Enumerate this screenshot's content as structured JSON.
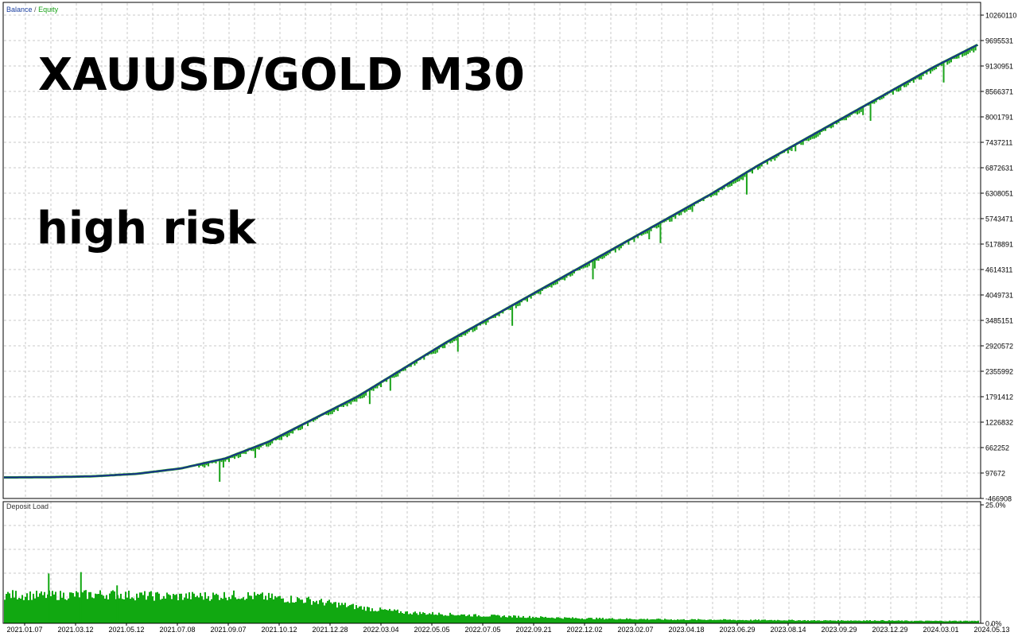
{
  "overlay": {
    "title": "XAUUSD/GOLD M30",
    "subtitle": "high risk"
  },
  "legend": {
    "balance": "Balance",
    "separator": "/",
    "equity": "Equity"
  },
  "colors": {
    "balance": "#1a2f8f",
    "equity": "#1aa31a",
    "deposit_load": "#11a811",
    "grid": "#c8c8c8",
    "frame": "#000000"
  },
  "chart_data": [
    {
      "type": "line",
      "series": [
        {
          "name": "Balance",
          "values": [
            0,
            5000,
            25000,
            80000,
            200000,
            420000,
            800000,
            1300000,
            1800000,
            2400000,
            3000000,
            3550000,
            4100000,
            4650000,
            5200000,
            5750000,
            6300000,
            6900000,
            7450000,
            8000000,
            8550000,
            9100000,
            9600000
          ]
        },
        {
          "name": "Equity",
          "values": [
            0,
            5000,
            25000,
            80000,
            200000,
            420000,
            800000,
            1300000,
            1800000,
            2400000,
            3000000,
            3550000,
            4100000,
            4650000,
            5200000,
            5750000,
            6300000,
            6900000,
            7450000,
            8000000,
            8550000,
            9100000,
            9600000
          ]
        }
      ],
      "ylim": [
        -466908,
        10260110
      ],
      "y_ticks": [
        "10260110",
        "9695531",
        "9130951",
        "8566371",
        "8001791",
        "7437211",
        "6872631",
        "6308051",
        "5743471",
        "5178891",
        "4614311",
        "4049731",
        "3485151",
        "2920572",
        "2355992",
        "1791412",
        "1226832",
        "662252",
        "97672",
        "-466908"
      ],
      "grid": true,
      "legend": "top-left"
    },
    {
      "type": "bar",
      "title": "Deposit Load",
      "y_ticks": [
        "25.0%",
        "0.0%"
      ],
      "ylim": [
        0,
        25
      ],
      "x_ticks": [
        "2021.01.07",
        "2021.03.12",
        "2021.05.12",
        "2021.07.08",
        "2021.09.07",
        "2021.10.12",
        "2021.12.28",
        "2022.03.04",
        "2022.05.05",
        "2022.07.05",
        "2022.09.21",
        "2022.12.02",
        "2023.02.07",
        "2023.04.18",
        "2023.06.29",
        "2023.08.14",
        "2023.09.29",
        "2023.12.29",
        "2024.03.01",
        "2024.05.13"
      ],
      "load_profile": [
        6.2,
        6.0,
        6.1,
        6.3,
        6.0,
        5.8,
        5.9,
        6.1,
        5.5,
        5.0,
        4.0,
        3.0,
        2.3,
        2.0,
        1.7,
        1.5,
        1.3,
        1.1,
        1.0,
        0.9,
        0.8,
        0.8,
        0.7,
        0.7,
        0.6,
        0.6,
        0.6,
        0.5,
        0.5,
        0.5
      ],
      "spikes": [
        {
          "x": 0.045,
          "value": 10.5
        },
        {
          "x": 0.078,
          "value": 10.8
        },
        {
          "x": 0.115,
          "value": 8.0
        }
      ]
    }
  ]
}
